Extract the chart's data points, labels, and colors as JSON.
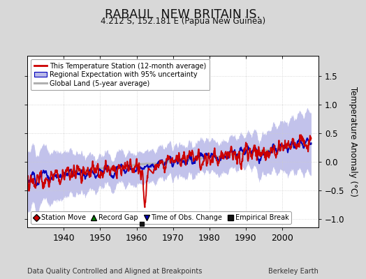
{
  "title": "RABAUL  NEW BRITAIN IS.",
  "subtitle": "4.212 S, 152.181 E (Papua New Guinea)",
  "ylabel": "Temperature Anomaly (°C)",
  "xlabel_left": "Data Quality Controlled and Aligned at Breakpoints",
  "xlabel_right": "Berkeley Earth",
  "ylim": [
    -1.15,
    1.85
  ],
  "xlim": [
    1930,
    2010
  ],
  "yticks": [
    -1,
    -0.5,
    0,
    0.5,
    1,
    1.5
  ],
  "xticks": [
    1940,
    1950,
    1960,
    1970,
    1980,
    1990,
    2000
  ],
  "bg_color": "#d8d8d8",
  "plot_bg_color": "#ffffff",
  "red_color": "#cc0000",
  "blue_color": "#0000bb",
  "blue_fill_color": "#b8b8e8",
  "gray_color": "#b0b0b0",
  "empirical_break_year": 1961.5,
  "empirical_break_value": -1.09,
  "legend1_items": [
    {
      "label": "This Temperature Station (12-month average)",
      "color": "#cc0000"
    },
    {
      "label": "Regional Expectation with 95% uncertainty",
      "color": "#0000bb"
    },
    {
      "label": "Global Land (5-year average)",
      "color": "#b0b0b0"
    }
  ],
  "legend2_items": [
    {
      "label": "Station Move",
      "marker": "D",
      "color": "#cc0000"
    },
    {
      "label": "Record Gap",
      "marker": "^",
      "color": "#008800"
    },
    {
      "label": "Time of Obs. Change",
      "marker": "v",
      "color": "#0000bb"
    },
    {
      "label": "Empirical Break",
      "marker": "s",
      "color": "#111111"
    }
  ]
}
